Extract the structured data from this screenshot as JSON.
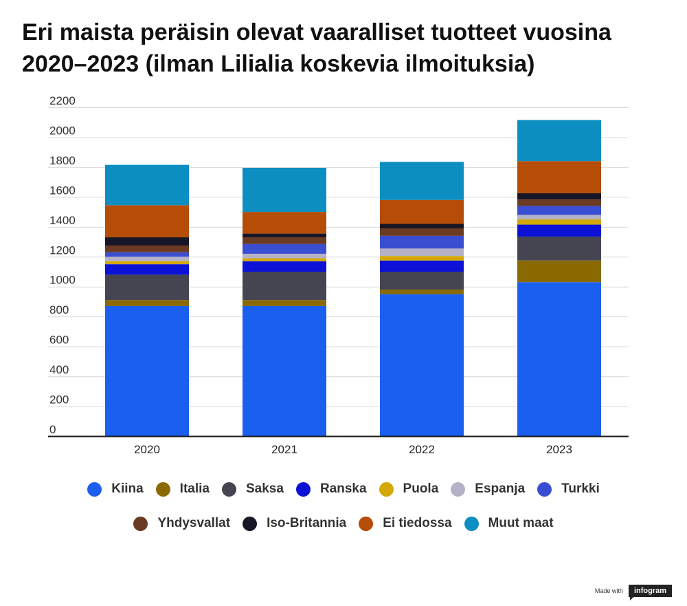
{
  "title": "Eri maista peräisin olevat vaaralliset tuotteet vuosina 2020–2023 (ilman Lilialia koskevia ilmoituksia)",
  "brand": {
    "made_with": "Made with",
    "logo": "infogram"
  },
  "chart_data": {
    "type": "bar",
    "stacked": true,
    "title": "Eri maista peräisin olevat vaaralliset tuotteet vuosina 2020–2023 (ilman Lilialia koskevia ilmoituksia)",
    "categories": [
      "2020",
      "2021",
      "2022",
      "2023"
    ],
    "ylim": [
      0,
      2200
    ],
    "yticks": [
      0,
      200,
      400,
      600,
      800,
      1000,
      1200,
      1400,
      1600,
      1800,
      2000,
      2200
    ],
    "grid": true,
    "legend_position": "bottom",
    "series": [
      {
        "name": "Kiina",
        "color": "#1a5ff0",
        "values": [
          870,
          870,
          950,
          1030
        ]
      },
      {
        "name": "Italia",
        "color": "#8a6a00",
        "values": [
          40,
          40,
          30,
          145
        ]
      },
      {
        "name": "Saksa",
        "color": "#454552",
        "values": [
          170,
          190,
          120,
          160
        ]
      },
      {
        "name": "Ranska",
        "color": "#0b12d6",
        "values": [
          70,
          70,
          75,
          80
        ]
      },
      {
        "name": "Puola",
        "color": "#d4a806",
        "values": [
          20,
          20,
          30,
          35
        ]
      },
      {
        "name": "Espanja",
        "color": "#b4b2c6",
        "values": [
          30,
          30,
          50,
          30
        ]
      },
      {
        "name": "Turkki",
        "color": "#3a4ed2",
        "values": [
          30,
          65,
          85,
          60
        ]
      },
      {
        "name": "Yhdysvallat",
        "color": "#6b3a22",
        "values": [
          45,
          45,
          50,
          45
        ]
      },
      {
        "name": "Iso-Britannia",
        "color": "#161626",
        "values": [
          55,
          25,
          30,
          40
        ]
      },
      {
        "name": "Ei tiedossa",
        "color": "#b54d07",
        "values": [
          215,
          145,
          160,
          215
        ]
      },
      {
        "name": "Muut maat",
        "color": "#0c8fc0",
        "values": [
          270,
          295,
          255,
          275
        ]
      }
    ]
  }
}
